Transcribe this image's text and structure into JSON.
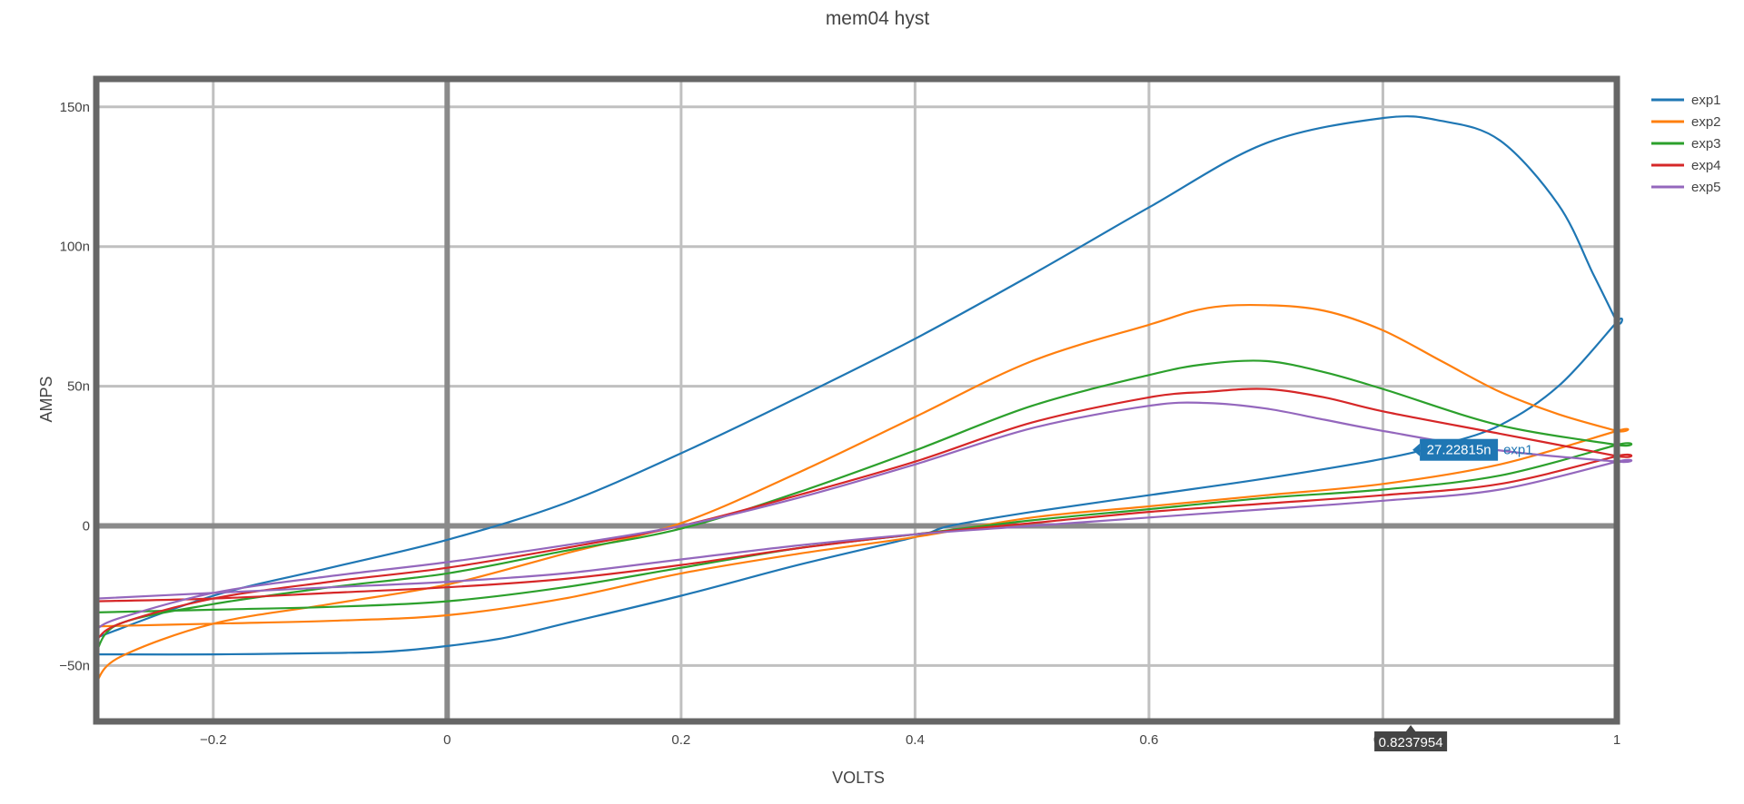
{
  "chart_data": {
    "type": "line",
    "title": "mem04 hyst",
    "xlabel": "VOLTS",
    "ylabel": "AMPS",
    "xlim": [
      -0.3,
      1.0
    ],
    "ylim": [
      -70,
      160
    ],
    "grid": true,
    "legend_position": "top-right",
    "x_ticks": [
      {
        "value": -0.2,
        "label": "−0.2"
      },
      {
        "value": 0,
        "label": "0"
      },
      {
        "value": 0.2,
        "label": "0.2"
      },
      {
        "value": 0.4,
        "label": "0.4"
      },
      {
        "value": 0.6,
        "label": "0.6"
      },
      {
        "value": 0.8,
        "label": "0.8"
      },
      {
        "value": 1.0,
        "label": "1"
      }
    ],
    "y_ticks": [
      {
        "value": -50,
        "label": "−50n"
      },
      {
        "value": 0,
        "label": "0"
      },
      {
        "value": 50,
        "label": "50n"
      },
      {
        "value": 100,
        "label": "100n"
      },
      {
        "value": 150,
        "label": "150n"
      }
    ],
    "series": [
      {
        "name": "exp1",
        "color": "#1f77b4",
        "forward_x": [
          -0.3,
          -0.2,
          -0.1,
          -0.05,
          0,
          0.05,
          0.1,
          0.2,
          0.3,
          0.4,
          0.43,
          0.5,
          0.6,
          0.7,
          0.8,
          0.85,
          0.9,
          0.95,
          1.0
        ],
        "forward_y": [
          -46,
          -46,
          -45.5,
          -45,
          -43,
          -40,
          -35,
          -25,
          -14,
          -4,
          0,
          5,
          11,
          17,
          24,
          29,
          36,
          50,
          73
        ],
        "return_x": [
          1.0,
          0.98,
          0.95,
          0.9,
          0.85,
          0.8,
          0.7,
          0.6,
          0.5,
          0.4,
          0.3,
          0.2,
          0.1,
          0.0,
          -0.1,
          -0.2,
          -0.3
        ],
        "return_y": [
          73,
          90,
          115,
          138,
          145,
          146,
          137,
          114,
          90,
          67,
          46,
          26,
          8,
          -5,
          -15,
          -25,
          -40
        ]
      },
      {
        "name": "exp2",
        "color": "#ff7f0e",
        "forward_x": [
          -0.3,
          -0.2,
          -0.1,
          0,
          0.1,
          0.2,
          0.3,
          0.4,
          0.5,
          0.6,
          0.7,
          0.8,
          0.9,
          1.0
        ],
        "forward_y": [
          -36,
          -35,
          -34,
          -32,
          -26,
          -17,
          -10,
          -4,
          3,
          7,
          11,
          15,
          22,
          34
        ],
        "return_x": [
          1.0,
          0.95,
          0.9,
          0.85,
          0.8,
          0.75,
          0.7,
          0.65,
          0.6,
          0.5,
          0.4,
          0.3,
          0.2,
          0.1,
          0.0,
          -0.1,
          -0.2,
          -0.28,
          -0.3
        ],
        "return_y": [
          34,
          40,
          48,
          59,
          70,
          77,
          79,
          78,
          72,
          59,
          39,
          19,
          1,
          -10,
          -21,
          -28,
          -35,
          -47,
          -56
        ]
      },
      {
        "name": "exp3",
        "color": "#2ca02c",
        "forward_x": [
          -0.3,
          -0.2,
          -0.1,
          0,
          0.1,
          0.2,
          0.3,
          0.4,
          0.5,
          0.6,
          0.7,
          0.8,
          0.9,
          1.0
        ],
        "forward_y": [
          -31,
          -30,
          -29,
          -27,
          -22,
          -15,
          -8,
          -3,
          2,
          6,
          10,
          13,
          18,
          29
        ],
        "return_x": [
          1.0,
          0.9,
          0.8,
          0.75,
          0.7,
          0.65,
          0.6,
          0.5,
          0.4,
          0.3,
          0.2,
          0.1,
          0.0,
          -0.1,
          -0.2,
          -0.28,
          -0.3
        ],
        "return_y": [
          29,
          36,
          49,
          55,
          59,
          58,
          54,
          43,
          27,
          12,
          -1,
          -9,
          -17,
          -22,
          -28,
          -35,
          -45
        ]
      },
      {
        "name": "exp4",
        "color": "#d62728",
        "forward_x": [
          -0.3,
          -0.2,
          -0.1,
          0,
          0.1,
          0.2,
          0.3,
          0.4,
          0.5,
          0.6,
          0.7,
          0.8,
          0.9,
          1.0
        ],
        "forward_y": [
          -27,
          -26,
          -24,
          -22,
          -19,
          -14,
          -8,
          -3,
          1,
          5,
          8,
          11,
          15,
          25
        ],
        "return_x": [
          1.0,
          0.9,
          0.8,
          0.75,
          0.7,
          0.65,
          0.6,
          0.5,
          0.4,
          0.3,
          0.2,
          0.1,
          0.0,
          -0.1,
          -0.2,
          -0.28,
          -0.3
        ],
        "return_y": [
          25,
          33,
          41,
          46,
          49,
          48,
          46,
          37,
          23,
          11,
          0,
          -8,
          -15,
          -20,
          -26,
          -35,
          -41
        ]
      },
      {
        "name": "exp5",
        "color": "#9467bd",
        "forward_x": [
          -0.3,
          -0.2,
          -0.1,
          0,
          0.1,
          0.2,
          0.3,
          0.4,
          0.5,
          0.6,
          0.7,
          0.8,
          0.9,
          1.0
        ],
        "forward_y": [
          -26,
          -24,
          -22,
          -20,
          -17,
          -12,
          -7,
          -3,
          0,
          3,
          6,
          9,
          13,
          23
        ],
        "return_x": [
          1.0,
          0.9,
          0.8,
          0.75,
          0.7,
          0.65,
          0.6,
          0.5,
          0.4,
          0.3,
          0.2,
          0.1,
          0.0,
          -0.1,
          -0.2,
          -0.28,
          -0.3
        ],
        "return_y": [
          23,
          27,
          34,
          38,
          42,
          44,
          43,
          35,
          22,
          10,
          0,
          -7,
          -13,
          -18,
          -24,
          -33,
          -37
        ]
      }
    ],
    "hover": {
      "x_label": "0.8237954",
      "y_label": "27.22815n",
      "series_name": "exp1",
      "x": 0.8237954,
      "y": 27.22815
    }
  }
}
